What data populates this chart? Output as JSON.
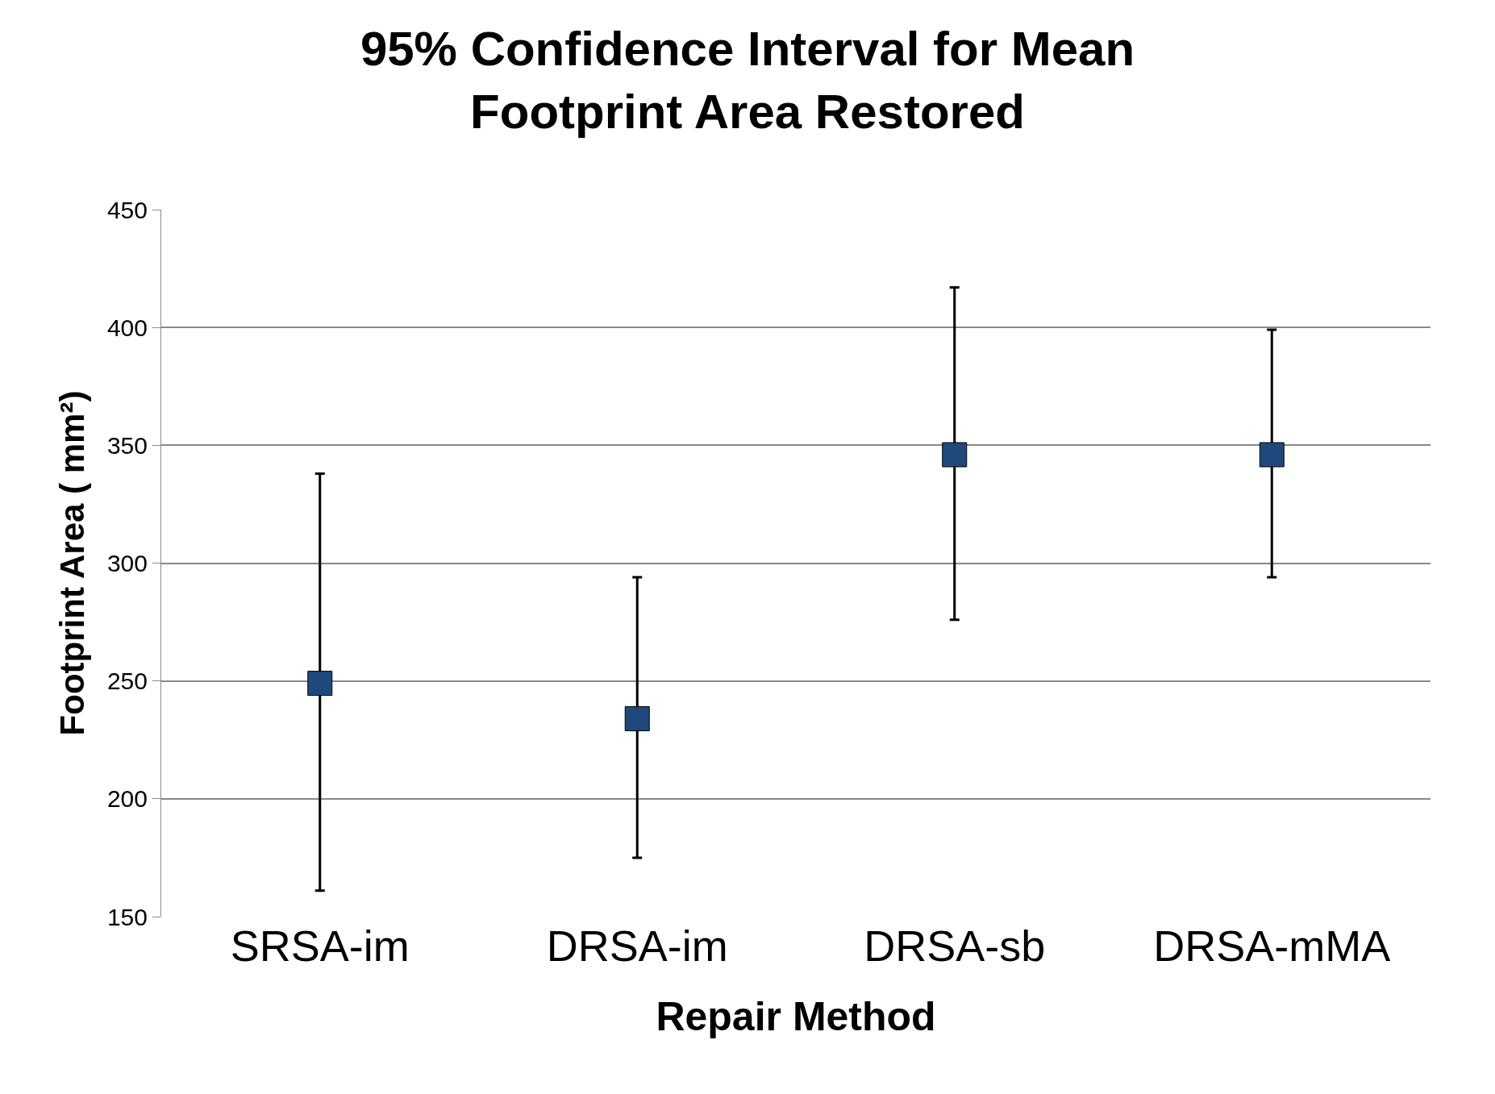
{
  "chart_data": {
    "type": "scatter",
    "title": "95% Confidence Interval for Mean\nFootprint Area Restored",
    "xlabel": "Repair Method",
    "ylabel": "Footprint Area ( mm²)",
    "categories": [
      "SRSA-im",
      "DRSA-im",
      "DRSA-sb",
      "DRSA-mMA"
    ],
    "series": [
      {
        "color": "#1f497d",
        "values": [
          249,
          234,
          346,
          346
        ],
        "errors": [
          [
            161,
            338
          ],
          [
            175,
            294
          ],
          [
            276,
            417
          ],
          [
            294,
            399
          ]
        ]
      }
    ],
    "ylim": [
      150,
      450
    ],
    "yticks": [
      150,
      200,
      250,
      300,
      350,
      400,
      450
    ],
    "grid": "y",
    "marker": "square"
  }
}
